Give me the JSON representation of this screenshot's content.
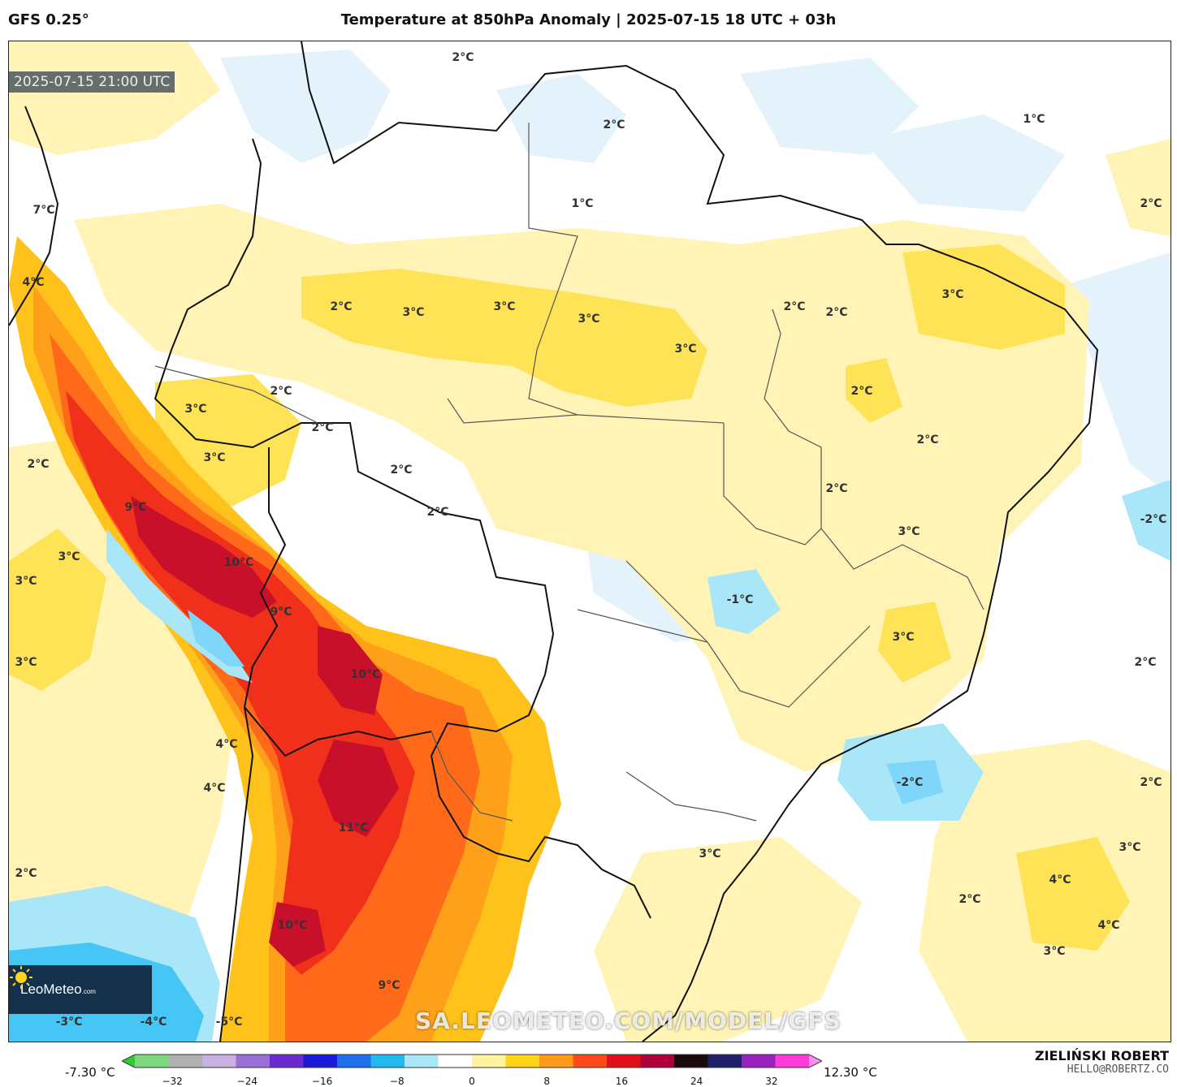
{
  "header": {
    "model": "GFS 0.25°",
    "title": "Temperature at 850hPa Anomaly | 2025-07-15 18 UTC + 03h"
  },
  "map": {
    "timestamp": "2025-07-15 21:00 UTC",
    "labels": [
      {
        "text": "2°C"
      },
      {
        "text": "1°C"
      },
      {
        "text": "2°C"
      },
      {
        "text": "2°C"
      },
      {
        "text": "1°C"
      },
      {
        "text": "7°C"
      },
      {
        "text": "4°C"
      },
      {
        "text": "2°C"
      },
      {
        "text": "3°C"
      },
      {
        "text": "3°C"
      },
      {
        "text": "3°C"
      },
      {
        "text": "3°C"
      },
      {
        "text": "2°C"
      },
      {
        "text": "2°C"
      },
      {
        "text": "3°C"
      },
      {
        "text": "2°C"
      },
      {
        "text": "3°C"
      },
      {
        "text": "2°C"
      },
      {
        "text": "2°C"
      },
      {
        "text": "3°C"
      },
      {
        "text": "2°C"
      },
      {
        "text": "2°C"
      },
      {
        "text": "2°C"
      },
      {
        "text": "2°C"
      },
      {
        "text": "2°C"
      },
      {
        "text": "9°C"
      },
      {
        "text": "3°C"
      },
      {
        "text": "3°C"
      },
      {
        "text": "10°C"
      },
      {
        "text": "-2°C"
      },
      {
        "text": "-1°C"
      },
      {
        "text": "9°C"
      },
      {
        "text": "3°C"
      },
      {
        "text": "3°C"
      },
      {
        "text": "10°C"
      },
      {
        "text": "2°C"
      },
      {
        "text": "3°C"
      },
      {
        "text": "4°C"
      },
      {
        "text": "4°C"
      },
      {
        "text": "-2°C"
      },
      {
        "text": "2°C"
      },
      {
        "text": "11°C"
      },
      {
        "text": "3°C"
      },
      {
        "text": "3°C"
      },
      {
        "text": "2°C"
      },
      {
        "text": "4°C"
      },
      {
        "text": "2°C"
      },
      {
        "text": "10°C"
      },
      {
        "text": "4°C"
      },
      {
        "text": "3°C"
      },
      {
        "text": "9°C"
      },
      {
        "text": "-3°C"
      },
      {
        "text": "-4°C"
      },
      {
        "text": "-5°C"
      }
    ],
    "logo": {
      "name": "LeoMeteo",
      "suffix": ".com"
    },
    "watermark": "SA.LEOMETEO.COM/MODEL/GFS"
  },
  "colorbar": {
    "min_label": "-7.30 °C",
    "max_label": "12.30 °C",
    "ticks": [
      "−32",
      "−24",
      "−16",
      "−8",
      "0",
      "8",
      "16",
      "24",
      "32"
    ],
    "range": [
      -36,
      36
    ],
    "colors": [
      "#2ecc2e",
      "#7fd87f",
      "#b0b0b0",
      "#c8b0e0",
      "#9a6fd8",
      "#6a2ad0",
      "#1a1ad8",
      "#1e6ff0",
      "#22b8f0",
      "#a8e6f8",
      "#ffffff",
      "#fff3a0",
      "#ffd31a",
      "#ff9a1a",
      "#ff4a1a",
      "#e0101a",
      "#b0003a",
      "#1a0a0a",
      "#20206a",
      "#9a20c0",
      "#ff3ad8",
      "#ff8af0"
    ]
  },
  "footer": {
    "author": "ZIELIŃSKI ROBERT",
    "email": "HELLO@ROBERTZ.CO"
  }
}
